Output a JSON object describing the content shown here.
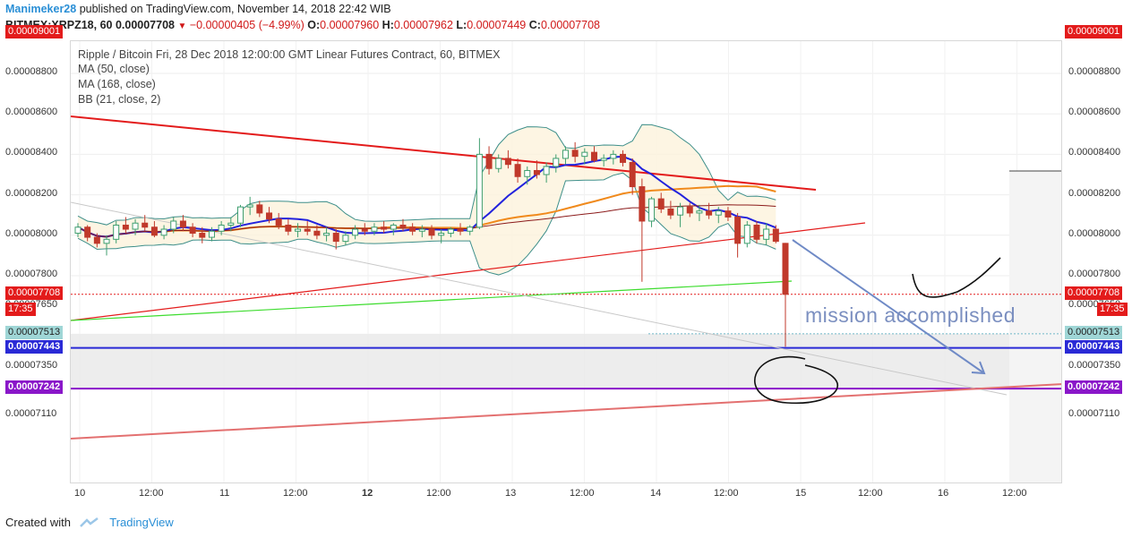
{
  "header": {
    "author": "Manimeker28",
    "published": "published on TradingView.com, November 14, 2018 22:42 WIB",
    "symbol_line": "BITMEX:XRPZ18, 60 0.00007708",
    "change": "−0.00000405 (−4.99%)",
    "o_label": "O:",
    "o_value": "0.00007960",
    "h_label": "H:",
    "h_value": "0.00007962",
    "l_label": "L:",
    "l_value": "0.00007449",
    "c_label": "C:",
    "c_value": "0.00007708"
  },
  "legend": {
    "title": "Ripple / Bitcoin Fri, 28 Dec 2018 12:00:00 GMT Linear Futures Contract, 60, BITMEX",
    "ma50": "MA (50, close)",
    "ma168": "MA (168, close)",
    "bb": "BB (21, close, 2)"
  },
  "annotation": "mission accomplished",
  "footer": {
    "created_with": "Created with",
    "brand": "TradingView"
  },
  "colors": {
    "up": "#3e9e6e",
    "down": "#c0392b",
    "ma50": "#2222dd",
    "ma168": "#f08a1c",
    "bb": "#3e8f8a",
    "resistance": "#e31b1b",
    "support": "#e31b1b",
    "green_line": "#3ddc2e",
    "blue_level": "#2a2ad6",
    "purple_level": "#8a17c9",
    "arrow": "#6f8ac6",
    "hline_9001": "#e31b1b"
  },
  "chart_data": {
    "type": "candlestick",
    "y_ticks_left": [
      "0.00009001",
      "0.00008800",
      "0.00008600",
      "0.00008400",
      "0.00008200",
      "0.00008000",
      "0.00007800",
      "0.00007708",
      "0.00007650",
      "0.00007513",
      "0.00007443",
      "0.00007350",
      "0.00007242",
      "0.00007110"
    ],
    "y_ticks_right": [
      "0.00009001",
      "0.00008800",
      "0.00008600",
      "0.00008400",
      "0.00008200",
      "0.00008000",
      "0.00007800",
      "0.00007708",
      "0.00007650",
      "0.00007513",
      "0.00007443",
      "0.00007350",
      "0.00007242",
      "0.00007110"
    ],
    "price_tags": [
      {
        "label": "0.00009001",
        "color": "#e31b1b"
      },
      {
        "label": "0.00007708",
        "color": "#e31b1b"
      },
      {
        "label": "17:35",
        "color": "#e31b1b"
      },
      {
        "label": "0.00007513",
        "color": "#9fd6d6"
      },
      {
        "label": "0.00007443",
        "color": "#2a2ad6"
      },
      {
        "label": "0.00007242",
        "color": "#8a17c9"
      }
    ],
    "x_labels": [
      {
        "text": "10",
        "bold": false
      },
      {
        "text": "12:00",
        "bold": false
      },
      {
        "text": "11",
        "bold": false
      },
      {
        "text": "12:00",
        "bold": false
      },
      {
        "text": "12",
        "bold": true
      },
      {
        "text": "12:00",
        "bold": false
      },
      {
        "text": "13",
        "bold": false
      },
      {
        "text": "12:00",
        "bold": false
      },
      {
        "text": "14",
        "bold": false
      },
      {
        "text": "12:00",
        "bold": false
      },
      {
        "text": "15",
        "bold": false
      },
      {
        "text": "12:00",
        "bold": false
      },
      {
        "text": "16",
        "bold": false
      },
      {
        "text": "12:00",
        "bold": false
      }
    ],
    "candles": [
      [
        8.01e-05,
        8.06e-05,
        7.99e-05,
        8.04e-05
      ],
      [
        8.04e-05,
        8.05e-05,
        7.97e-05,
        7.99e-05
      ],
      [
        7.99e-05,
        8.01e-05,
        7.94e-05,
        7.96e-05
      ],
      [
        7.96e-05,
        8e-05,
        7.9e-05,
        7.98e-05
      ],
      [
        7.98e-05,
        8.07e-05,
        7.96e-05,
        8.05e-05
      ],
      [
        8.05e-05,
        8.09e-05,
        8.01e-05,
        8.03e-05
      ],
      [
        8.03e-05,
        8.08e-05,
        8e-05,
        8.06e-05
      ],
      [
        8.06e-05,
        8.1e-05,
        8.02e-05,
        8.04e-05
      ],
      [
        8.04e-05,
        8.07e-05,
        7.99e-05,
        8e-05
      ],
      [
        8e-05,
        8.05e-05,
        7.98e-05,
        8.03e-05
      ],
      [
        8.03e-05,
        8.09e-05,
        8.01e-05,
        8.07e-05
      ],
      [
        8.07e-05,
        8.1e-05,
        8.02e-05,
        8.04e-05
      ],
      [
        8.04e-05,
        8.06e-05,
        7.99e-05,
        8.01e-05
      ],
      [
        8.01e-05,
        8.04e-05,
        7.96e-05,
        7.99e-05
      ],
      [
        7.99e-05,
        8.04e-05,
        7.97e-05,
        8.02e-05
      ],
      [
        8.02e-05,
        8.07e-05,
        8e-05,
        8.05e-05
      ],
      [
        8.05e-05,
        8.09e-05,
        8.02e-05,
        8.06e-05
      ],
      [
        8.06e-05,
        8.15e-05,
        8.04e-05,
        8.14e-05
      ],
      [
        8.14e-05,
        8.19e-05,
        8.1e-05,
        8.15e-05
      ],
      [
        8.15e-05,
        8.17e-05,
        8.09e-05,
        8.11e-05
      ],
      [
        8.11e-05,
        8.14e-05,
        8.06e-05,
        8.08e-05
      ],
      [
        8.08e-05,
        8.11e-05,
        8.03e-05,
        8.05e-05
      ],
      [
        8.05e-05,
        8.08e-05,
        8e-05,
        8.02e-05
      ],
      [
        8.02e-05,
        8.06e-05,
        7.99e-05,
        8.03e-05
      ],
      [
        8.03e-05,
        8.07e-05,
        8e-05,
        8.02e-05
      ],
      [
        8.02e-05,
        8.05e-05,
        7.98e-05,
        8e-05
      ],
      [
        8e-05,
        8.04e-05,
        7.97e-05,
        8.01e-05
      ],
      [
        8.01e-05,
        8.03e-05,
        7.93e-05,
        7.97e-05
      ],
      [
        7.97e-05,
        8.02e-05,
        7.95e-05,
        8e-05
      ],
      [
        8e-05,
        8.05e-05,
        7.98e-05,
        8.03e-05
      ],
      [
        8.03e-05,
        8.06e-05,
        8e-05,
        8.02e-05
      ],
      [
        8.02e-05,
        8.06e-05,
        8e-05,
        8.04e-05
      ],
      [
        8.04e-05,
        8.07e-05,
        8.01e-05,
        8.03e-05
      ],
      [
        8.03e-05,
        8.06e-05,
        8e-05,
        8.05e-05
      ],
      [
        8.05e-05,
        8.08e-05,
        8.02e-05,
        8.04e-05
      ],
      [
        8.04e-05,
        8.06e-05,
        8e-05,
        8.02e-05
      ],
      [
        8.02e-05,
        8.05e-05,
        7.99e-05,
        8.03e-05
      ],
      [
        8.03e-05,
        8.05e-05,
        7.98e-05,
        8e-05
      ],
      [
        8e-05,
        8.03e-05,
        7.96e-05,
        8.01e-05
      ],
      [
        8.01e-05,
        8.04e-05,
        7.99e-05,
        8.03e-05
      ],
      [
        8.03e-05,
        8.06e-05,
        8e-05,
        8.02e-05
      ],
      [
        8.02e-05,
        8.05e-05,
        8e-05,
        8.04e-05
      ],
      [
        8.04e-05,
        8.48e-05,
        8.03e-05,
        8.4e-05
      ],
      [
        8.4e-05,
        8.44e-05,
        8.3e-05,
        8.33e-05
      ],
      [
        8.33e-05,
        8.4e-05,
        8.31e-05,
        8.38e-05
      ],
      [
        8.38e-05,
        8.42e-05,
        8.33e-05,
        8.35e-05
      ],
      [
        8.35e-05,
        8.38e-05,
        8.26e-05,
        8.29e-05
      ],
      [
        8.29e-05,
        8.34e-05,
        8.25e-05,
        8.32e-05
      ],
      [
        8.32e-05,
        8.37e-05,
        8.28e-05,
        8.3e-05
      ],
      [
        8.3e-05,
        8.36e-05,
        8.26e-05,
        8.34e-05
      ],
      [
        8.34e-05,
        8.4e-05,
        8.31e-05,
        8.38e-05
      ],
      [
        8.38e-05,
        8.44e-05,
        8.35e-05,
        8.42e-05
      ],
      [
        8.42e-05,
        8.46e-05,
        8.36e-05,
        8.39e-05
      ],
      [
        8.39e-05,
        8.43e-05,
        8.35e-05,
        8.41e-05
      ],
      [
        8.41e-05,
        8.44e-05,
        8.36e-05,
        8.37e-05
      ],
      [
        8.37e-05,
        8.4e-05,
        8.34e-05,
        8.38e-05
      ],
      [
        8.38e-05,
        8.42e-05,
        8.35e-05,
        8.4e-05
      ],
      [
        8.4e-05,
        8.42e-05,
        8.34e-05,
        8.36e-05
      ],
      [
        8.36e-05,
        8.38e-05,
        8.2e-05,
        8.24e-05
      ],
      [
        8.24e-05,
        8.28e-05,
        7.77e-05,
        8.07e-05
      ],
      [
        8.07e-05,
        8.19e-05,
        8.04e-05,
        8.18e-05
      ],
      [
        8.18e-05,
        8.21e-05,
        8.11e-05,
        8.13e-05
      ],
      [
        8.13e-05,
        8.17e-05,
        8.08e-05,
        8.1e-05
      ],
      [
        8.1e-05,
        8.16e-05,
        8.04e-05,
        8.14e-05
      ],
      [
        8.14e-05,
        8.16e-05,
        8.09e-05,
        8.11e-05
      ],
      [
        8.11e-05,
        8.15e-05,
        8.07e-05,
        8.12e-05
      ],
      [
        8.12e-05,
        8.16e-05,
        8.08e-05,
        8.1e-05
      ],
      [
        8.1e-05,
        8.14e-05,
        8.06e-05,
        8.12e-05
      ],
      [
        8.12e-05,
        8.14e-05,
        8.07e-05,
        8.09e-05
      ],
      [
        8.09e-05,
        8.11e-05,
        7.89e-05,
        7.96e-05
      ],
      [
        7.96e-05,
        8.07e-05,
        7.94e-05,
        8.05e-05
      ],
      [
        8.05e-05,
        8.07e-05,
        7.96e-05,
        7.98e-05
      ],
      [
        7.98e-05,
        8.06e-05,
        7.95e-05,
        8.03e-05
      ],
      [
        8.03e-05,
        8.05e-05,
        7.96e-05,
        7.97e-05
      ],
      [
        7.96e-05,
        7.962e-05,
        7.449e-05,
        7.708e-05
      ]
    ],
    "x_range_days": [
      10,
      16.5
    ],
    "ylim": [
      7.05e-05,
      9.15e-05
    ]
  }
}
